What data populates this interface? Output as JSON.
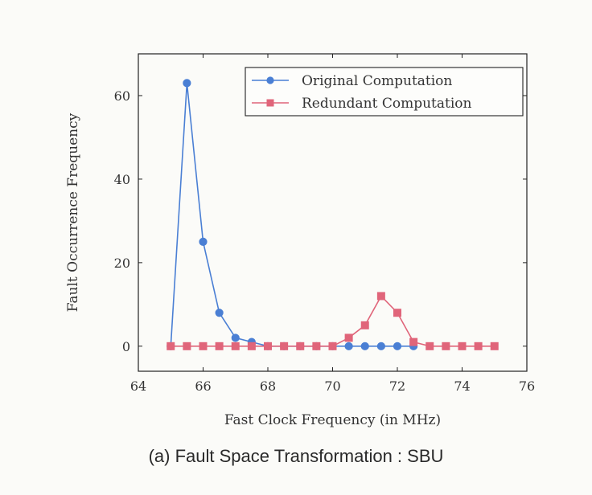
{
  "caption": "(a) Fault Space Transformation : SBU",
  "chart_data": {
    "type": "line",
    "title": "",
    "xlabel": "Fast Clock Frequency (in MHz)",
    "ylabel": "Fault Occurrence Frequency",
    "xlim": [
      64,
      76
    ],
    "ylim": [
      -6,
      70
    ],
    "xticks": [
      64,
      66,
      68,
      70,
      72,
      74,
      76
    ],
    "yticks": [
      0,
      20,
      40,
      60
    ],
    "legend_position": "top-right",
    "grid": false,
    "series": [
      {
        "name": "Original Computation",
        "color": "#4a7fd4",
        "marker": "circle",
        "x": [
          65,
          65.5,
          66,
          66.5,
          67,
          67.5,
          68,
          68.5,
          69,
          69.5,
          70,
          70.5,
          71,
          71.5,
          72,
          72.5
        ],
        "y": [
          0,
          63,
          25,
          8,
          2,
          1,
          0,
          0,
          0,
          0,
          0,
          0,
          0,
          0,
          0,
          0
        ]
      },
      {
        "name": "Redundant Computation",
        "color": "#e0657a",
        "marker": "square",
        "x": [
          65,
          65.5,
          66,
          66.5,
          67,
          67.5,
          68,
          68.5,
          69,
          69.5,
          70,
          70.5,
          71,
          71.5,
          72,
          72.5,
          73,
          73.5,
          74,
          74.5,
          75
        ],
        "y": [
          0,
          0,
          0,
          0,
          0,
          0,
          0,
          0,
          0,
          0,
          0,
          2,
          5,
          12,
          8,
          1,
          0,
          0,
          0,
          0,
          0
        ]
      }
    ]
  }
}
